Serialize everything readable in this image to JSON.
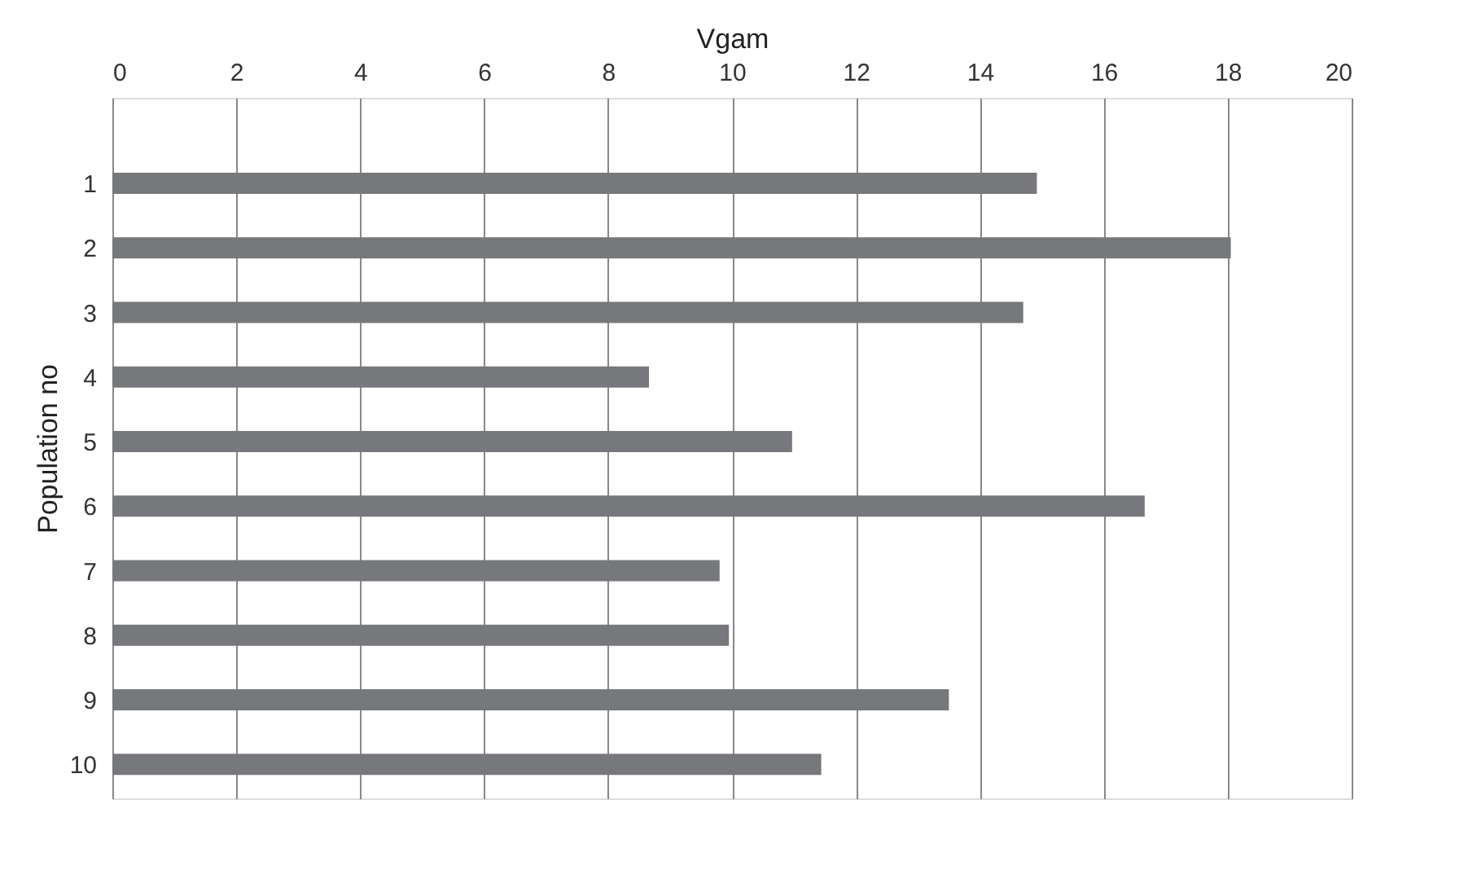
{
  "chart_data": {
    "type": "bar",
    "orientation": "horizontal",
    "xlabel": "Vgam",
    "ylabel": "Population no",
    "categories": [
      "1",
      "2",
      "3",
      "4",
      "5",
      "6",
      "7",
      "8",
      "9",
      "10"
    ],
    "values": [
      14.92,
      18.05,
      14.7,
      8.66,
      10.97,
      16.66,
      9.8,
      9.95,
      13.5,
      11.44
    ],
    "color": "#77787b",
    "xlim": [
      0,
      20
    ],
    "xticks": [
      0,
      2,
      4,
      6,
      8,
      10,
      12,
      14,
      16,
      18,
      20
    ],
    "grid": "x"
  }
}
